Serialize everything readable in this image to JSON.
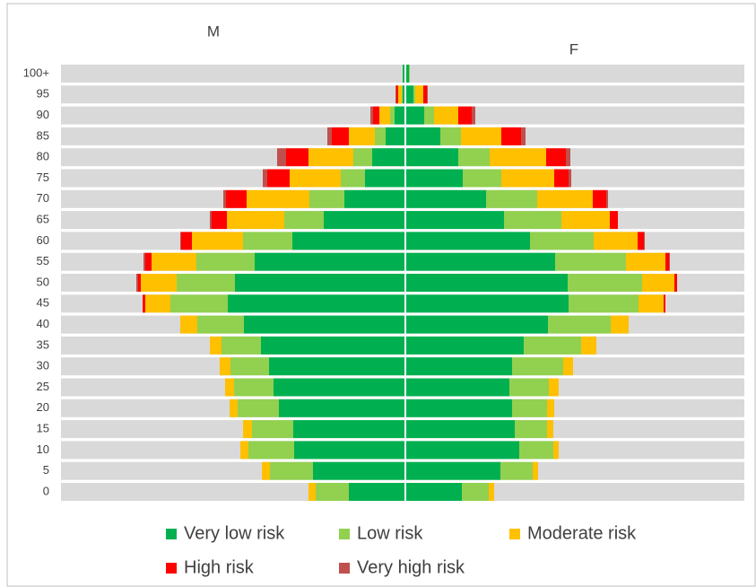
{
  "chart_data": {
    "type": "pyramid",
    "left_label": "M",
    "right_label": "F",
    "categories": [
      "0",
      "5",
      "10",
      "15",
      "20",
      "25",
      "30",
      "35",
      "40",
      "45",
      "50",
      "55",
      "60",
      "65",
      "70",
      "75",
      "80",
      "85",
      "90",
      "95",
      "100+"
    ],
    "xlim": [
      0,
      384
    ],
    "series": [
      {
        "name": "Very low risk",
        "color": "#00b050",
        "left": [
          62,
          102,
          123,
          124,
          140,
          146,
          151,
          160,
          179,
          197,
          189,
          167,
          125,
          90,
          67,
          44,
          36,
          21,
          11,
          2,
          2
        ],
        "right": [
          62,
          105,
          126,
          121,
          118,
          115,
          118,
          131,
          158,
          181,
          180,
          166,
          138,
          109,
          89,
          63,
          58,
          38,
          20,
          8,
          3
        ]
      },
      {
        "name": "Low risk",
        "color": "#92d050",
        "left": [
          37,
          48,
          51,
          46,
          46,
          44,
          43,
          44,
          52,
          64,
          65,
          65,
          55,
          44,
          39,
          27,
          21,
          12,
          5,
          1,
          0
        ],
        "right": [
          30,
          36,
          38,
          36,
          39,
          44,
          57,
          64,
          70,
          78,
          83,
          79,
          71,
          64,
          57,
          43,
          35,
          23,
          11,
          2,
          1
        ]
      },
      {
        "name": "Moderate risk",
        "color": "#ffc000",
        "left": [
          8,
          9,
          9,
          10,
          9,
          10,
          12,
          13,
          19,
          28,
          40,
          50,
          57,
          64,
          70,
          57,
          50,
          29,
          12,
          4,
          0
        ],
        "right": [
          6,
          6,
          6,
          7,
          8,
          11,
          11,
          17,
          20,
          28,
          36,
          44,
          49,
          54,
          62,
          59,
          63,
          45,
          27,
          9,
          0
        ]
      },
      {
        "name": "High risk",
        "color": "#ff0000",
        "left": [
          0,
          0,
          0,
          0,
          0,
          0,
          0,
          0,
          0,
          3,
          3,
          7,
          12,
          17,
          23,
          25,
          25,
          19,
          7,
          2,
          0
        ],
        "right": [
          0,
          0,
          0,
          0,
          0,
          0,
          0,
          0,
          0,
          2,
          3,
          4,
          7,
          9,
          15,
          16,
          22,
          22,
          15,
          4,
          0
        ]
      },
      {
        "name": "Very high risk",
        "color": "#c0504d",
        "left": [
          0,
          0,
          0,
          0,
          0,
          0,
          0,
          0,
          0,
          0,
          2,
          2,
          1,
          2,
          3,
          5,
          10,
          5,
          3,
          1,
          0
        ],
        "right": [
          0,
          0,
          0,
          0,
          0,
          0,
          0,
          0,
          0,
          0,
          0,
          1,
          1,
          0,
          2,
          3,
          5,
          5,
          4,
          1,
          0
        ]
      }
    ]
  }
}
